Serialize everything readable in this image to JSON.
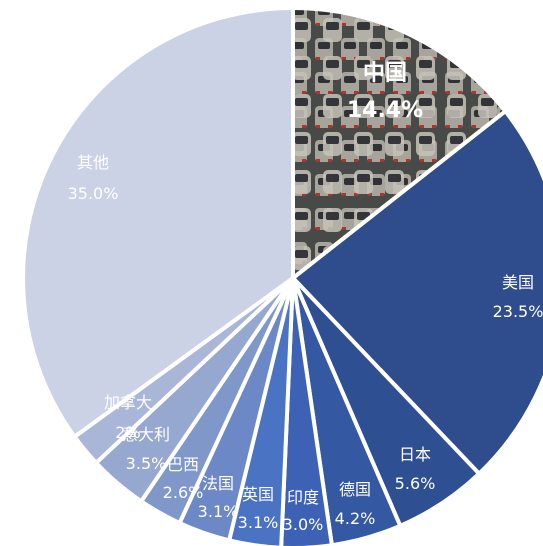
{
  "chart_data": {
    "type": "pie",
    "title": "",
    "start_angle_deg": 0,
    "direction": "clockwise",
    "slices": [
      {
        "label": "中国",
        "value": 14.4,
        "display": "14.4%",
        "color": "#5b5e5a",
        "fill_type": "photo-traffic"
      },
      {
        "label": "美国",
        "value": 23.5,
        "display": "23.5%",
        "color": "#2f4d8c"
      },
      {
        "label": "日本",
        "value": 5.6,
        "display": "5.6%",
        "color": "#2f4f93"
      },
      {
        "label": "德国",
        "value": 4.2,
        "display": "4.2%",
        "color": "#3558a3"
      },
      {
        "label": "印度",
        "value": 3.0,
        "display": "3.0%",
        "color": "#3d62b5"
      },
      {
        "label": "英国",
        "value": 3.1,
        "display": "3.1%",
        "color": "#4a73c4"
      },
      {
        "label": "法国",
        "value": 3.1,
        "display": "3.1%",
        "color": "#6c88c6"
      },
      {
        "label": "巴西",
        "value": 2.6,
        "display": "2.6%",
        "color": "#8097ca"
      },
      {
        "label": "意大利",
        "value": 3.5,
        "display": "3.5%",
        "color": "#97a8d0"
      },
      {
        "label": "加拿大",
        "value": 2.0,
        "display": "2%",
        "color": "#aab6d8"
      },
      {
        "label": "其他",
        "value": 35.0,
        "display": "35.0%",
        "color": "#cbd2e6"
      }
    ]
  }
}
